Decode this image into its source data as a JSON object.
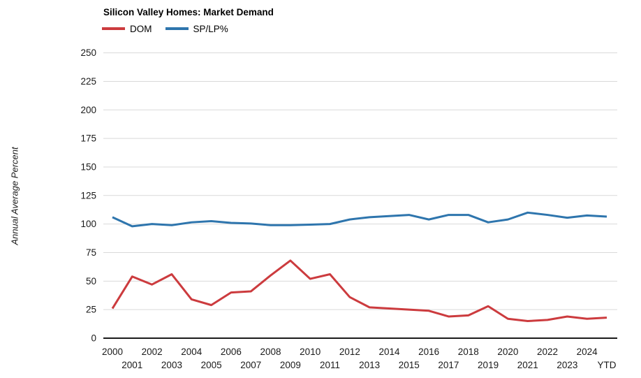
{
  "header": {
    "title": "Silicon Valley Homes: Market Demand"
  },
  "chart_data": {
    "type": "line",
    "title": "Silicon Valley Homes: Market Demand",
    "xlabel": "",
    "ylabel": "Annual Average Percent",
    "ylim": [
      0,
      250
    ],
    "ytick_step": 25,
    "yticks": [
      0,
      25,
      50,
      75,
      100,
      125,
      150,
      175,
      200,
      225,
      250
    ],
    "grid": "horizontal-only",
    "legend_position": "top-left",
    "categories": [
      "2000",
      "2001",
      "2002",
      "2003",
      "2004",
      "2005",
      "2006",
      "2007",
      "2008",
      "2009",
      "2010",
      "2011",
      "2012",
      "2013",
      "2014",
      "2015",
      "2016",
      "2017",
      "2018",
      "2019",
      "2020",
      "2021",
      "2022",
      "2023",
      "2024",
      "YTD"
    ],
    "series": [
      {
        "name": "DOM",
        "color": "#cc3b3e",
        "values": [
          26,
          54,
          47,
          56,
          34,
          29,
          40,
          41,
          55,
          68,
          52,
          56,
          36,
          27,
          26,
          25,
          24,
          19,
          20,
          28,
          17,
          15,
          16,
          19,
          17,
          18
        ]
      },
      {
        "name": "SP/LP%",
        "color": "#2e75ad",
        "values": [
          106,
          98,
          100,
          99,
          101.5,
          102.5,
          101,
          100.5,
          99,
          99,
          99.5,
          100,
          104,
          106,
          107,
          108,
          104,
          108,
          108,
          101.5,
          104,
          110,
          108,
          105.5,
          107.5,
          106.5
        ]
      }
    ]
  },
  "colors": {
    "grid_line": "#d9d9d9",
    "axis_line": "#1a1a1a",
    "tick_label": "#1a1a1a",
    "background": "#ffffff"
  }
}
